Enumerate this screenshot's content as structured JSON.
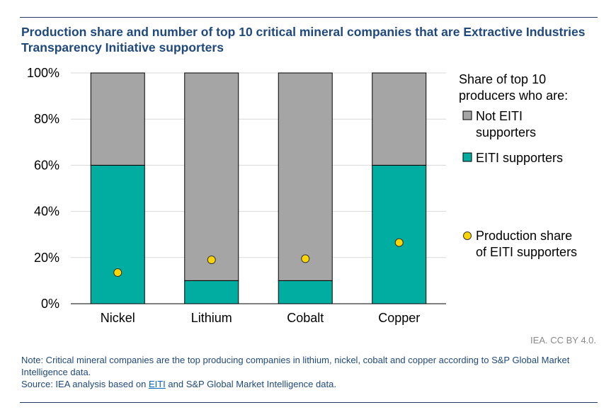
{
  "title": "Production share and number of top 10 critical mineral companies that are Extractive Industries Transparency Initiative supporters",
  "chart_data": {
    "type": "bar",
    "stacked": true,
    "categories": [
      "Nickel",
      "Lithium",
      "Cobalt",
      "Copper"
    ],
    "series": [
      {
        "name": "EITI supporters",
        "values": [
          60,
          10,
          10,
          60
        ],
        "color": "#00ada0"
      },
      {
        "name": "Not EITI supporters",
        "values": [
          40,
          90,
          90,
          40
        ],
        "color": "#a5a5a5"
      }
    ],
    "scatter": {
      "name": "Production share of EITI supporters",
      "values": [
        13.5,
        19,
        19.5,
        26.5
      ],
      "color": "#ffd500"
    },
    "ylim": [
      0,
      100
    ],
    "yticks": [
      0,
      20,
      40,
      60,
      80,
      100
    ],
    "ytick_labels": [
      "0%",
      "20%",
      "40%",
      "60%",
      "80%",
      "100%"
    ],
    "grid": true,
    "legend": {
      "heading": "Share of top 10 producers who are:",
      "placement": "right",
      "items": [
        {
          "label": "Not EITI supporters",
          "kind": "box",
          "color": "#a5a5a5"
        },
        {
          "label": "EITI supporters",
          "kind": "box",
          "color": "#00ada0"
        },
        {
          "label": "Production share of EITI supporters",
          "kind": "dot",
          "color": "#ffd500"
        }
      ]
    }
  },
  "credit": "IEA. CC BY 4.0.",
  "note": {
    "text": "Note: Critical mineral companies are the top producing companies in lithium, nickel, cobalt and copper according to S&P Global Market Intelligence data.",
    "source_prefix": "Source: IEA analysis based on ",
    "source_link": "EITI",
    "source_suffix": " and S&P Global Market Intelligence data."
  }
}
